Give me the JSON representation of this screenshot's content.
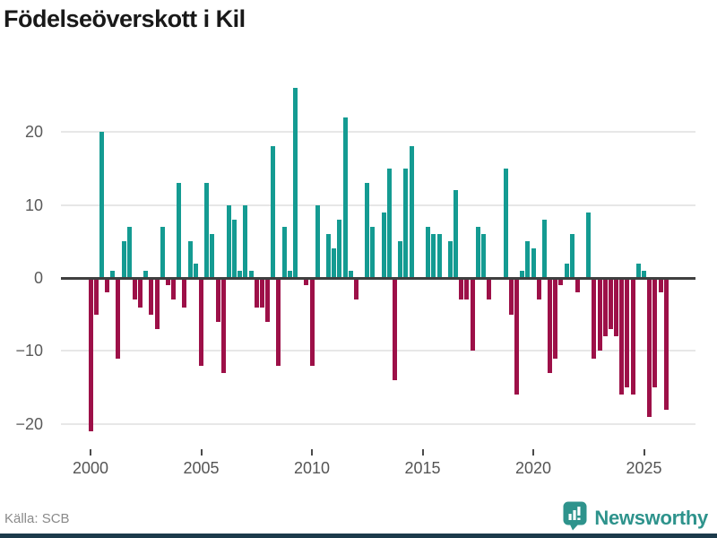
{
  "title": "Födelseöverskott i Kil",
  "source": "Källa: SCB",
  "branding": {
    "name": "Newsworthy"
  },
  "chart_data": {
    "type": "bar",
    "frequency": "quarterly",
    "title": "Födelseöverskott i Kil",
    "xlabel": "",
    "ylabel": "",
    "ylim": [
      -22,
      27
    ],
    "yticks": [
      20,
      10,
      0,
      -10,
      -20
    ],
    "xticks": [
      2000,
      2005,
      2010,
      2015,
      2020,
      2025
    ],
    "grid": "horizontal",
    "legend": "none",
    "positive_color": "#149b92",
    "negative_color": "#9d1048",
    "series": [
      {
        "year": 2000,
        "values": [
          -21,
          -5,
          20,
          -2
        ]
      },
      {
        "year": 2001,
        "values": [
          1,
          -11,
          5,
          7
        ]
      },
      {
        "year": 2002,
        "values": [
          -3,
          -4,
          1,
          -5
        ]
      },
      {
        "year": 2003,
        "values": [
          -7,
          7,
          -1,
          -3
        ]
      },
      {
        "year": 2004,
        "values": [
          13,
          -4,
          5,
          2
        ]
      },
      {
        "year": 2005,
        "values": [
          -12,
          13,
          6,
          -6
        ]
      },
      {
        "year": 2006,
        "values": [
          -13,
          10,
          8,
          1
        ]
      },
      {
        "year": 2007,
        "values": [
          10,
          1,
          -4,
          -4
        ]
      },
      {
        "year": 2008,
        "values": [
          -6,
          18,
          -12,
          7
        ]
      },
      {
        "year": 2009,
        "values": [
          1,
          26,
          0,
          -1
        ]
      },
      {
        "year": 2010,
        "values": [
          -12,
          10,
          0,
          6
        ]
      },
      {
        "year": 2011,
        "values": [
          4,
          8,
          22,
          1
        ]
      },
      {
        "year": 2012,
        "values": [
          -3,
          0,
          13,
          7
        ]
      },
      {
        "year": 2013,
        "values": [
          0,
          9,
          15,
          -14
        ]
      },
      {
        "year": 2014,
        "values": [
          5,
          15,
          18,
          0
        ]
      },
      {
        "year": 2015,
        "values": [
          0,
          7,
          6,
          6
        ]
      },
      {
        "year": 2016,
        "values": [
          0,
          5,
          12,
          -3
        ]
      },
      {
        "year": 2017,
        "values": [
          -3,
          -10,
          7,
          6
        ]
      },
      {
        "year": 2018,
        "values": [
          -3,
          0,
          0,
          15
        ]
      },
      {
        "year": 2019,
        "values": [
          -5,
          -16,
          1,
          5
        ]
      },
      {
        "year": 2020,
        "values": [
          4,
          -3,
          8,
          -13
        ]
      },
      {
        "year": 2021,
        "values": [
          -11,
          -1,
          2,
          6
        ]
      },
      {
        "year": 2022,
        "values": [
          -2,
          0,
          9,
          -11
        ]
      },
      {
        "year": 2023,
        "values": [
          -10,
          -8,
          -7,
          -8
        ]
      },
      {
        "year": 2024,
        "values": [
          -16,
          -15,
          -16,
          2
        ]
      },
      {
        "year": 2025,
        "values": [
          1,
          -19,
          -15,
          -2
        ]
      },
      {
        "year": 2026,
        "values": [
          -18
        ]
      }
    ]
  }
}
